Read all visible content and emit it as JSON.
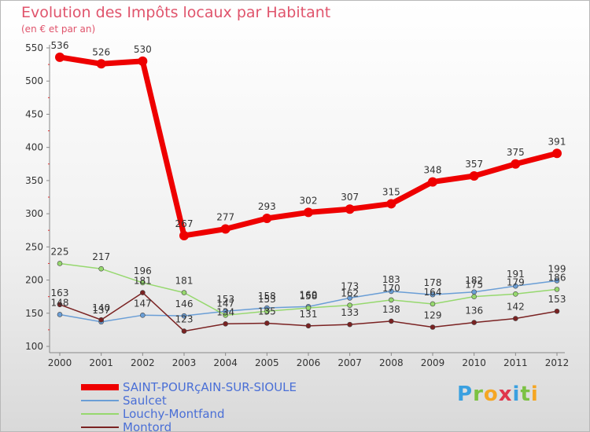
{
  "title": "Evolution des Impôts locaux par Habitant",
  "subtitle": "(en € et par an)",
  "logo": "Proxiti",
  "chart_data": {
    "type": "line",
    "categories": [
      "2000",
      "2001",
      "2002",
      "2003",
      "2004",
      "2005",
      "2006",
      "2007",
      "2008",
      "2009",
      "2010",
      "2011",
      "2012"
    ],
    "ylim": [
      100,
      550
    ],
    "yticks": [
      100,
      150,
      200,
      250,
      300,
      350,
      400,
      450,
      500,
      550
    ],
    "series": [
      {
        "name": "SAINT-POURçAIN-SUR-SIOULE",
        "color": "#ee0000",
        "width": 7,
        "marker": 6,
        "values": [
          536,
          526,
          530,
          267,
          277,
          293,
          302,
          307,
          315,
          348,
          357,
          375,
          391
        ],
        "labels": [
          "536",
          "526",
          "530",
          "267",
          "277",
          "293",
          "302",
          "307",
          "315",
          "348",
          "357",
          "375",
          "391"
        ]
      },
      {
        "name": "Saulcet",
        "color": "#6a9ed6",
        "width": 1.5,
        "marker": 3,
        "values": [
          148,
          137,
          147,
          146,
          153,
          158,
          160,
          173,
          183,
          178,
          182,
          191,
          199
        ],
        "labels": [
          "148",
          "137",
          "147",
          "146",
          "153",
          "158",
          "160",
          "173",
          "183",
          "178",
          "182",
          "191",
          "199"
        ]
      },
      {
        "name": "Louchy-Montfand",
        "color": "#96d86e",
        "width": 1.5,
        "marker": 3,
        "values": [
          225,
          217,
          196,
          181,
          147,
          153,
          158,
          162,
          170,
          164,
          175,
          179,
          186
        ],
        "labels": [
          "225",
          "217",
          "196",
          "181",
          "147",
          "153",
          "158",
          "162",
          "170",
          "164",
          "175",
          "179",
          "186"
        ]
      },
      {
        "name": "Montord",
        "color": "#7a2222",
        "width": 1.5,
        "marker": 3,
        "values": [
          163,
          140,
          181,
          123,
          134,
          135,
          131,
          133,
          138,
          129,
          136,
          142,
          153
        ],
        "labels": [
          "163",
          "140",
          "181",
          "123",
          "134",
          "135",
          "131",
          "133",
          "138",
          "129",
          "136",
          "142",
          "153"
        ]
      }
    ]
  }
}
